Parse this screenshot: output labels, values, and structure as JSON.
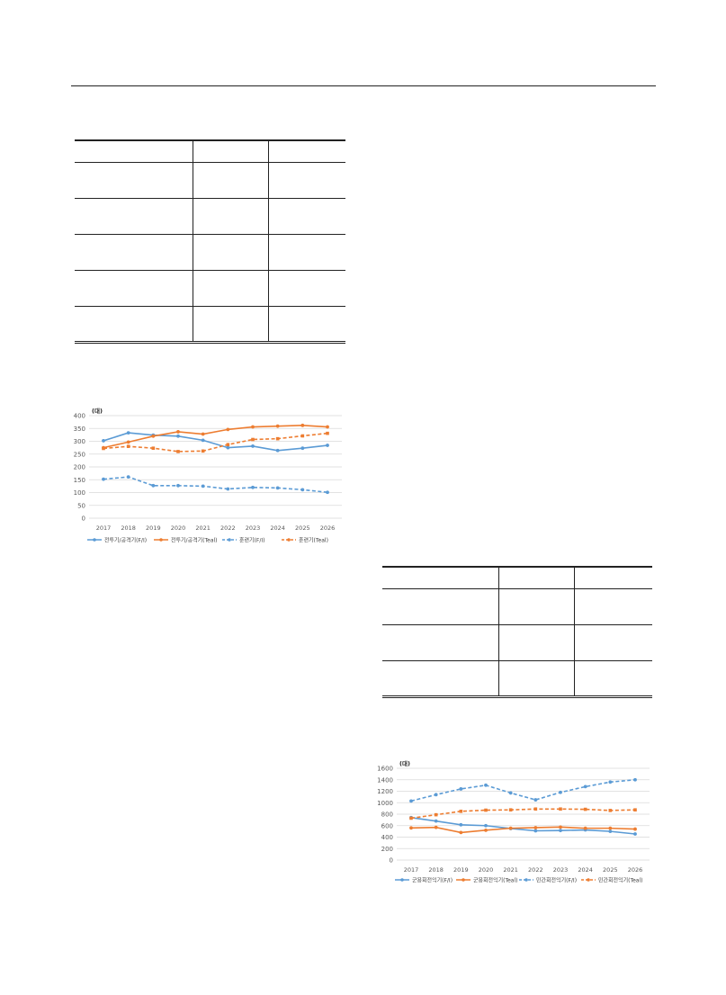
{
  "tables": [
    {
      "rows": [
        [
          "",
          "",
          ""
        ],
        [
          "",
          "",
          ""
        ],
        [
          "",
          "",
          ""
        ],
        [
          "",
          "",
          ""
        ],
        [
          "",
          "",
          ""
        ],
        [
          "",
          "",
          ""
        ]
      ]
    },
    {
      "rows": [
        [
          "",
          "",
          ""
        ],
        [
          "",
          "",
          ""
        ],
        [
          "",
          "",
          ""
        ],
        [
          "",
          "",
          ""
        ]
      ]
    }
  ],
  "chart_data": [
    {
      "type": "line",
      "ylabel": "(대)",
      "ylim": [
        0,
        400
      ],
      "yticks": [
        0,
        50,
        100,
        150,
        200,
        250,
        300,
        350,
        400
      ],
      "x": [
        "2017",
        "2018",
        "2019",
        "2020",
        "2021",
        "2022",
        "2023",
        "2024",
        "2025",
        "2026"
      ],
      "grid": true,
      "legend": "bottom",
      "series": [
        {
          "name": "전투기/공격기(F/I)",
          "color": "#5b9bd5",
          "dash": false,
          "values": [
            302,
            333,
            324,
            320,
            304,
            275,
            281,
            264,
            273,
            284
          ]
        },
        {
          "name": "전투기/공격기(Teal)",
          "color": "#ed7d31",
          "dash": false,
          "values": [
            275,
            297,
            320,
            337,
            328,
            346,
            356,
            359,
            362,
            356
          ]
        },
        {
          "name": "훈련기(F/I)",
          "color": "#5b9bd5",
          "dash": true,
          "values": [
            152,
            161,
            127,
            127,
            125,
            114,
            120,
            118,
            111,
            101
          ]
        },
        {
          "name": "훈련기(Teal)",
          "color": "#ed7d31",
          "dash": true,
          "values": [
            272,
            280,
            273,
            260,
            262,
            287,
            307,
            310,
            321,
            331
          ]
        }
      ]
    },
    {
      "type": "line",
      "ylabel": "(대)",
      "ylim": [
        0,
        1600
      ],
      "yticks": [
        0,
        200,
        400,
        600,
        800,
        1000,
        1200,
        1400,
        1600
      ],
      "x": [
        "2017",
        "2018",
        "2019",
        "2020",
        "2021",
        "2022",
        "2023",
        "2024",
        "2025",
        "2026"
      ],
      "grid": true,
      "legend": "bottom",
      "series": [
        {
          "name": "군용회전익기(F/I)",
          "color": "#5b9bd5",
          "dash": false,
          "values": [
            740,
            680,
            615,
            600,
            550,
            510,
            515,
            525,
            500,
            455
          ]
        },
        {
          "name": "군용회전익기(Teal)",
          "color": "#ed7d31",
          "dash": false,
          "values": [
            560,
            570,
            480,
            520,
            555,
            565,
            575,
            555,
            555,
            540
          ]
        },
        {
          "name": "민간회전익기(F/I)",
          "color": "#5b9bd5",
          "dash": true,
          "values": [
            1030,
            1140,
            1240,
            1305,
            1170,
            1050,
            1180,
            1280,
            1360,
            1400
          ]
        },
        {
          "name": "민간회전익기(Teal)",
          "color": "#ed7d31",
          "dash": true,
          "values": [
            730,
            790,
            850,
            870,
            875,
            890,
            890,
            885,
            865,
            875
          ]
        }
      ]
    }
  ]
}
